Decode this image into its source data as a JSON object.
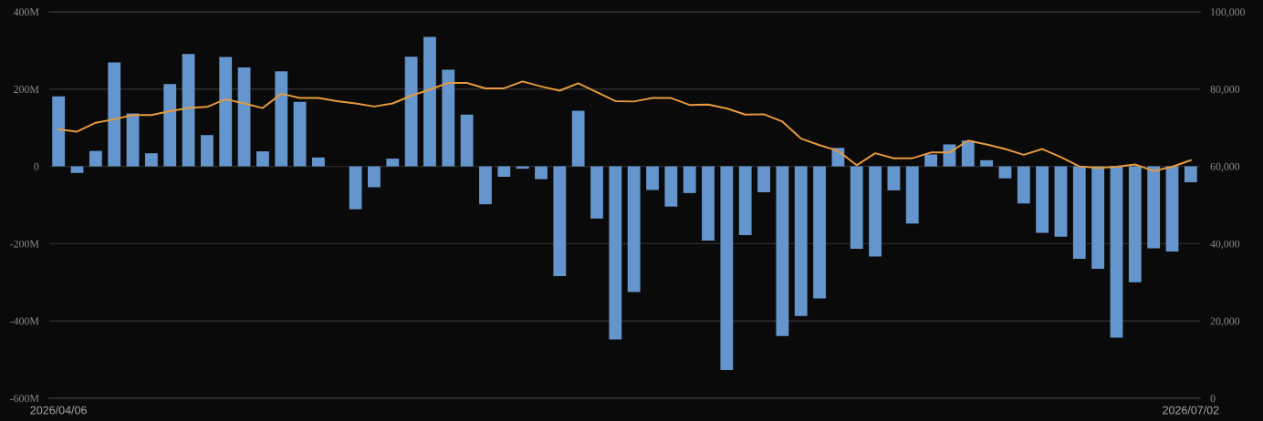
{
  "chart_data": {
    "type": "bar",
    "categories": [
      "2026/04/06",
      null,
      null,
      null,
      null,
      null,
      null,
      null,
      null,
      null,
      null,
      null,
      null,
      null,
      null,
      null,
      null,
      null,
      null,
      null,
      null,
      null,
      null,
      null,
      null,
      null,
      null,
      null,
      null,
      null,
      null,
      null,
      null,
      null,
      null,
      null,
      null,
      null,
      null,
      null,
      null,
      null,
      null,
      null,
      null,
      null,
      null,
      null,
      null,
      null,
      null,
      null,
      null,
      null,
      null,
      null,
      null,
      null,
      null,
      null,
      null,
      "2026/07/02"
    ],
    "series": [
      {
        "color": "#6496cd",
        "values": [
          181,
          -17,
          40,
          269,
          137,
          34,
          213,
          291,
          81,
          283,
          256,
          39,
          246,
          167,
          23,
          null,
          -111,
          -54,
          20,
          284,
          335,
          250,
          134,
          -98,
          -27,
          -6,
          -33,
          -284,
          144,
          -135,
          -448,
          -325,
          -61,
          -104,
          -69,
          -192,
          -527,
          -178,
          -67,
          -439,
          -387,
          -342,
          48,
          -213,
          -233,
          -62,
          -148,
          31,
          57,
          67,
          16,
          -31,
          -96,
          -172,
          -182,
          -239,
          -265,
          -443,
          -300,
          -212,
          -220,
          -41
        ]
      },
      {
        "type": "line",
        "axis": "y2",
        "color": "#e69a3c",
        "values": [
          69600,
          69000,
          71300,
          72200,
          73300,
          73300,
          74300,
          75100,
          75400,
          77400,
          76300,
          75100,
          78800,
          77700,
          77700,
          76900,
          76300,
          75500,
          76300,
          78300,
          79900,
          81600,
          81600,
          80200,
          80200,
          82000,
          80700,
          79600,
          81500,
          79200,
          76900,
          76800,
          77700,
          77700,
          75900,
          76000,
          75000,
          73400,
          73500,
          71600,
          67200,
          65500,
          64000,
          60300,
          63400,
          62100,
          62100,
          63600,
          63600,
          66700,
          65700,
          64500,
          63000,
          64500,
          62400,
          60000,
          59600,
          59900,
          60500,
          58800,
          59900,
          61600
        ]
      }
    ],
    "ylim": [
      -600,
      400
    ],
    "yticks": [
      {
        "value": -600,
        "label": "-600M"
      },
      {
        "value": -400,
        "label": "-400M"
      },
      {
        "value": -200,
        "label": "-200M"
      },
      0,
      {
        "value": 200,
        "label": "200M"
      },
      {
        "value": 400,
        "label": "400M"
      }
    ],
    "y2lim": [
      0,
      100000
    ],
    "y2ticks": [
      0,
      {
        "value": 20000,
        "label": "20,000"
      },
      {
        "value": 40000,
        "label": "40,000"
      },
      {
        "value": 60000,
        "label": "60,000"
      },
      {
        "value": 80000,
        "label": "80,000"
      },
      {
        "value": 100000,
        "label": "100,000"
      }
    ],
    "grid": "y"
  }
}
